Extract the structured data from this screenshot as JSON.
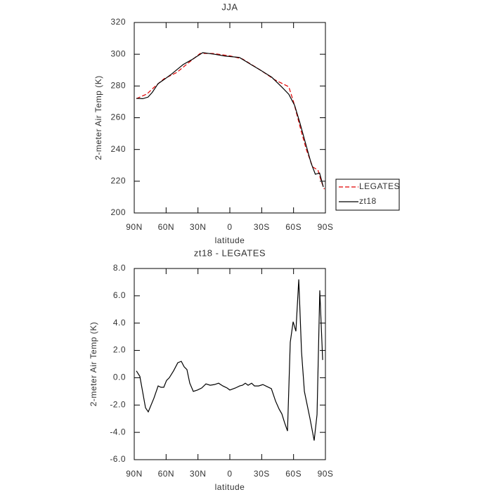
{
  "chart_data": [
    {
      "type": "line",
      "title": "JJA",
      "xlabel": "latitude",
      "ylabel": "2-meter Air Temp (K)",
      "xlim": [
        90,
        -90
      ],
      "xticks": [
        {
          "value": 90,
          "label": "90N"
        },
        {
          "value": 60,
          "label": "60N"
        },
        {
          "value": 30,
          "label": "30N"
        },
        0,
        {
          "value": -30,
          "label": "30S"
        },
        {
          "value": -60,
          "label": "60S"
        },
        {
          "value": -90,
          "label": "90S"
        }
      ],
      "ylim": [
        200,
        320
      ],
      "yticks": [
        200,
        220,
        240,
        260,
        280,
        300,
        320
      ],
      "legend": "outside-right",
      "series": [
        {
          "name": "LEGATES",
          "color": "#e00000",
          "linestyle": "dashed",
          "x": [
            88,
            78,
            70,
            62,
            50,
            40,
            28,
            16,
            0,
            -12,
            -30,
            -42,
            -55.5,
            -60,
            -67,
            -72,
            -78,
            -83,
            -86,
            -89
          ],
          "values": [
            272,
            275,
            280,
            284.5,
            288.5,
            294,
            300.5,
            300.5,
            299,
            297,
            289.5,
            284,
            279.5,
            270,
            252,
            240,
            229,
            227,
            220,
            215
          ]
        },
        {
          "name": "zt18",
          "color": "#000000",
          "linestyle": "solid",
          "x": [
            88,
            82,
            77,
            73,
            67.5,
            62,
            54.5,
            44,
            36,
            25.5,
            14.5,
            4,
            -9,
            -20,
            -30,
            -39.5,
            -49,
            -55.5,
            -61,
            -66,
            -71.5,
            -76.5,
            -80.5,
            -84.5,
            -88
          ],
          "values": [
            272.2,
            272,
            273,
            276,
            281.5,
            284,
            287.7,
            293.5,
            296.5,
            301,
            300,
            298.8,
            298,
            293.5,
            289.5,
            285.5,
            279.3,
            274.8,
            267.8,
            256.7,
            243.4,
            231.4,
            224.4,
            225.2,
            216.4
          ]
        }
      ]
    },
    {
      "type": "line",
      "title": "zt18 - LEGATES",
      "xlabel": "latitude",
      "ylabel": "2-meter Air Temp (K)",
      "xlim": [
        90,
        -90
      ],
      "xticks": [
        {
          "value": 90,
          "label": "90N"
        },
        {
          "value": 60,
          "label": "60N"
        },
        {
          "value": 30,
          "label": "30N"
        },
        0,
        {
          "value": -30,
          "label": "30S"
        },
        {
          "value": -60,
          "label": "60S"
        },
        {
          "value": -90,
          "label": "90S"
        }
      ],
      "ylim": [
        -6,
        8
      ],
      "yticks": [
        {
          "value": -6,
          "label": "-6.0"
        },
        {
          "value": -4,
          "label": "-4.0"
        },
        {
          "value": -2,
          "label": "-2.0"
        },
        {
          "value": 0,
          "label": "0.0"
        },
        {
          "value": 2,
          "label": "2.0"
        },
        {
          "value": 4,
          "label": "4.0"
        },
        {
          "value": 6,
          "label": "6.0"
        },
        {
          "value": 8,
          "label": "8.0"
        }
      ],
      "series": [
        {
          "color": "#000000",
          "linestyle": "solid",
          "x": [
            88,
            84.7,
            79.4,
            76.8,
            71.5,
            67.5,
            64.9,
            62.2,
            59.6,
            57,
            53,
            49,
            45.7,
            43,
            40.4,
            37.7,
            34.4,
            30.5,
            26.5,
            22.5,
            18.5,
            14.5,
            10.6,
            6.6,
            2.6,
            0,
            -5.3,
            -9.3,
            -11.9,
            -14.6,
            -17.2,
            -20.5,
            -23.2,
            -27.1,
            -31.1,
            -35.1,
            -39.1,
            -43,
            -46.4,
            -49,
            -51.6,
            -54.3,
            -56.9,
            -59.6,
            -62.2,
            -64.9,
            -67.5,
            -70.2,
            -75.5,
            -79.4,
            -82.1,
            -84.7,
            -87.4
          ],
          "values": [
            0.5,
            0.1,
            -2.2,
            -2.5,
            -1.5,
            -0.6,
            -0.7,
            -0.7,
            -0.2,
            0,
            0.5,
            1.1,
            1.2,
            0.8,
            0.6,
            -0.4,
            -1.0,
            -0.9,
            -0.75,
            -0.45,
            -0.55,
            -0.5,
            -0.4,
            -0.6,
            -0.75,
            -0.9,
            -0.75,
            -0.6,
            -0.55,
            -0.4,
            -0.55,
            -0.4,
            -0.6,
            -0.6,
            -0.5,
            -0.65,
            -0.8,
            -1.7,
            -2.3,
            -2.65,
            -3.3,
            -3.9,
            2.6,
            4.1,
            3.4,
            7.2,
            1.9,
            -1.0,
            -3.0,
            -4.6,
            -2.7,
            6.4,
            1.3
          ]
        }
      ]
    }
  ]
}
